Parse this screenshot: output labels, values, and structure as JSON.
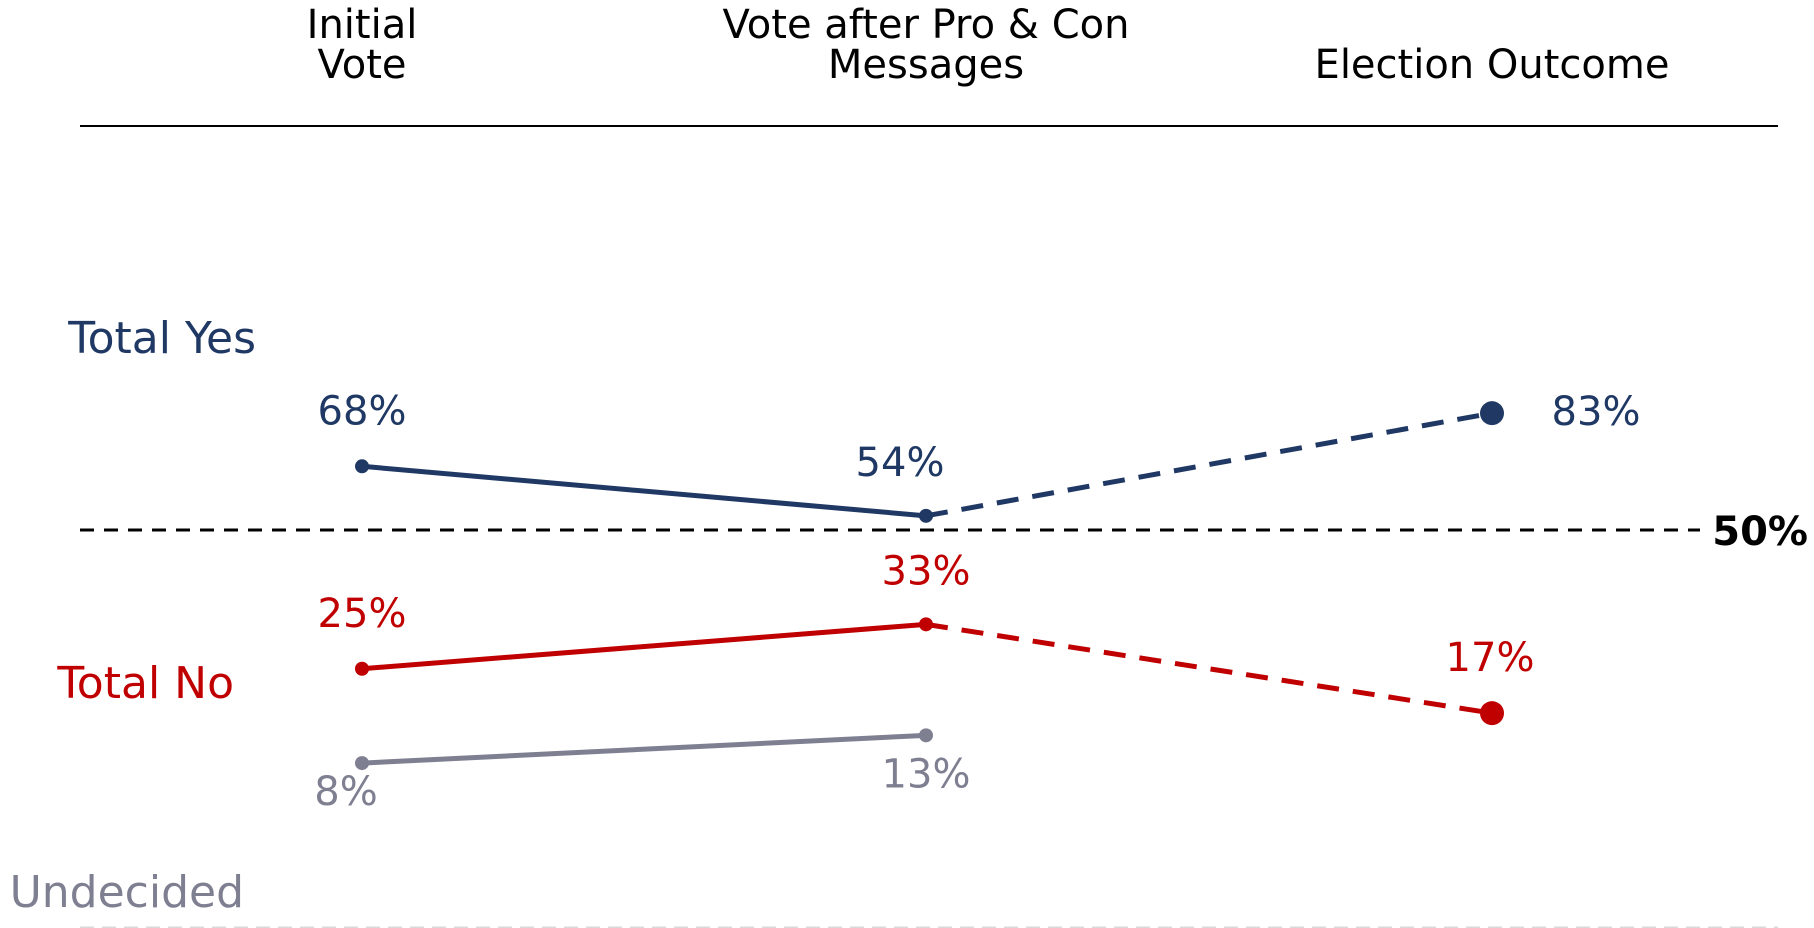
{
  "chart_data": {
    "type": "line",
    "categories": [
      "Initial Vote",
      "Vote after Pro & Con Messages",
      "Election Outcome"
    ],
    "column_headers": [
      [
        "Initial",
        "Vote"
      ],
      [
        "Vote after Pro & Con",
        "Messages"
      ],
      [
        "Election Outcome"
      ]
    ],
    "ylim": [
      0,
      100
    ],
    "grid": false,
    "legend": "row labels at left",
    "reference_line": {
      "value": 50,
      "label": "50%"
    },
    "series": [
      {
        "name": "Total Yes",
        "color": "#1f3864",
        "values": [
          68,
          54,
          83
        ],
        "labels": [
          "68%",
          "54%",
          "83%"
        ],
        "projected_from_index": 1
      },
      {
        "name": "Total No",
        "color": "#c00000",
        "values": [
          25,
          33,
          17
        ],
        "labels": [
          "25%",
          "33%",
          "17%"
        ],
        "projected_from_index": 1
      },
      {
        "name": "Undecided",
        "color": "#7f7f92",
        "values": [
          8,
          13,
          null
        ],
        "labels": [
          "8%",
          "13%",
          ""
        ],
        "projected_from_index": null
      }
    ]
  }
}
